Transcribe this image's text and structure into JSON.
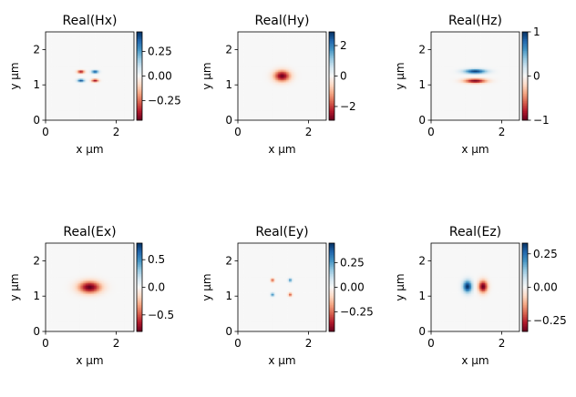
{
  "chart_data": [
    {
      "type": "heatmap",
      "title": "Real(Hx)",
      "xlabel": "x μm",
      "ylabel": "y μm",
      "xlim": [
        0,
        2.5
      ],
      "ylim": [
        0,
        2.5
      ],
      "xticks": [
        "0",
        "2"
      ],
      "yticks": [
        "0",
        "1",
        "2"
      ],
      "colorbar": {
        "cmap": "RdBu",
        "vmin": -0.45,
        "vmax": 0.45,
        "ticks": [
          0.25,
          0.0,
          -0.25
        ],
        "tick_labels": [
          "0.25",
          "0.00",
          "−0.25"
        ]
      },
      "blobs": [
        {
          "x": 1.0,
          "y": 1.37,
          "sx": 0.07,
          "sy": 0.03,
          "v": -0.4
        },
        {
          "x": 1.4,
          "y": 1.37,
          "sx": 0.07,
          "sy": 0.03,
          "v": 0.4
        },
        {
          "x": 1.0,
          "y": 1.12,
          "sx": 0.07,
          "sy": 0.03,
          "v": 0.4
        },
        {
          "x": 1.4,
          "y": 1.12,
          "sx": 0.07,
          "sy": 0.03,
          "v": -0.4
        }
      ]
    },
    {
      "type": "heatmap",
      "title": "Real(Hy)",
      "xlabel": "x μm",
      "ylabel": "y μm",
      "xlim": [
        0,
        2.5
      ],
      "ylim": [
        0,
        2.5
      ],
      "xticks": [
        "0",
        "2"
      ],
      "yticks": [
        "0",
        "1",
        "2"
      ],
      "colorbar": {
        "cmap": "RdBu",
        "vmin": -2.9,
        "vmax": 2.9,
        "ticks": [
          2,
          0,
          -2
        ],
        "tick_labels": [
          "2",
          "0",
          "−2"
        ]
      },
      "blobs": [
        {
          "x": 1.25,
          "y": 1.25,
          "sx": 0.16,
          "sy": 0.11,
          "v": -2.8
        }
      ]
    },
    {
      "type": "heatmap",
      "title": "Real(Hz)",
      "xlabel": "x μm",
      "ylabel": "y μm",
      "xlim": [
        0,
        2.5
      ],
      "ylim": [
        0,
        2.5
      ],
      "xticks": [
        "0",
        "2"
      ],
      "yticks": [
        "0",
        "1",
        "2"
      ],
      "colorbar": {
        "cmap": "RdBu",
        "vmin": -1,
        "vmax": 1,
        "ticks": [
          1,
          0,
          -1
        ],
        "tick_labels": [
          "1",
          "0",
          "−1"
        ]
      },
      "blobs": [
        {
          "x": 1.25,
          "y": 1.38,
          "sx": 0.22,
          "sy": 0.045,
          "v": 0.95
        },
        {
          "x": 1.25,
          "y": 1.11,
          "sx": 0.22,
          "sy": 0.045,
          "v": -0.95
        }
      ]
    },
    {
      "type": "heatmap",
      "title": "Real(Ex)",
      "xlabel": "x μm",
      "ylabel": "y μm",
      "xlim": [
        0,
        2.5
      ],
      "ylim": [
        0,
        2.5
      ],
      "xticks": [
        "0",
        "2"
      ],
      "yticks": [
        "0",
        "1",
        "2"
      ],
      "colorbar": {
        "cmap": "RdBu",
        "vmin": -0.8,
        "vmax": 0.8,
        "ticks": [
          0.5,
          0.0,
          -0.5
        ],
        "tick_labels": [
          "0.5",
          "0.0",
          "−0.5"
        ]
      },
      "blobs": [
        {
          "x": 1.25,
          "y": 1.25,
          "sx": 0.22,
          "sy": 0.12,
          "v": -0.8
        }
      ]
    },
    {
      "type": "heatmap",
      "title": "Real(Ey)",
      "xlabel": "x μm",
      "ylabel": "y μm",
      "xlim": [
        0,
        2.5
      ],
      "ylim": [
        0,
        2.5
      ],
      "xticks": [
        "0",
        "2"
      ],
      "yticks": [
        "0",
        "1",
        "2"
      ],
      "colorbar": {
        "cmap": "RdBu",
        "vmin": -0.45,
        "vmax": 0.45,
        "ticks": [
          0.25,
          0.0,
          -0.25
        ],
        "tick_labels": [
          "0.25",
          "0.00",
          "−0.25"
        ]
      },
      "blobs": [
        {
          "x": 0.98,
          "y": 1.45,
          "sx": 0.035,
          "sy": 0.035,
          "v": -0.3
        },
        {
          "x": 1.48,
          "y": 1.45,
          "sx": 0.035,
          "sy": 0.035,
          "v": 0.3
        },
        {
          "x": 0.98,
          "y": 1.04,
          "sx": 0.035,
          "sy": 0.035,
          "v": 0.3
        },
        {
          "x": 1.48,
          "y": 1.04,
          "sx": 0.035,
          "sy": 0.035,
          "v": -0.3
        }
      ]
    },
    {
      "type": "heatmap",
      "title": "Real(Ez)",
      "xlabel": "x μm",
      "ylabel": "y μm",
      "xlim": [
        0,
        2.5
      ],
      "ylim": [
        0,
        2.5
      ],
      "xticks": [
        "0",
        "2"
      ],
      "yticks": [
        "0",
        "1",
        "2"
      ],
      "colorbar": {
        "cmap": "RdBu",
        "vmin": -0.33,
        "vmax": 0.33,
        "ticks": [
          0.25,
          0.0,
          -0.25
        ],
        "tick_labels": [
          "0.25",
          "0.00",
          "−0.25"
        ]
      },
      "blobs": [
        {
          "x": 1.03,
          "y": 1.27,
          "sx": 0.09,
          "sy": 0.12,
          "v": 0.33
        },
        {
          "x": 1.47,
          "y": 1.27,
          "sx": 0.09,
          "sy": 0.12,
          "v": -0.33
        }
      ]
    }
  ]
}
